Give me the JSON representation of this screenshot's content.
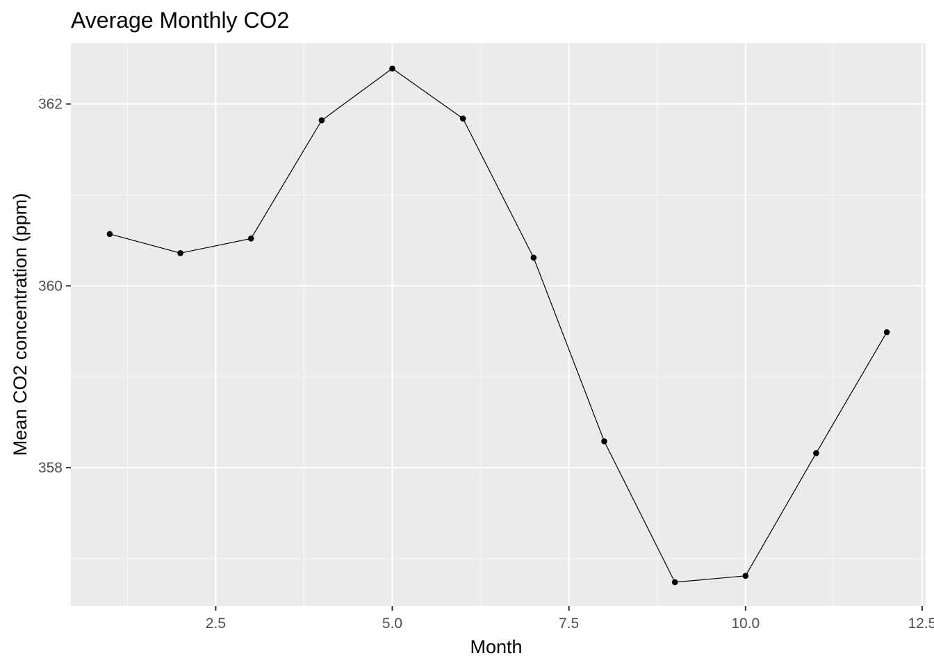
{
  "chart_data": {
    "type": "line",
    "title": "Average Monthly CO2",
    "xlabel": "Month",
    "ylabel": "Mean CO2 concentration (ppm)",
    "x": [
      1,
      2,
      3,
      4,
      5,
      6,
      7,
      8,
      9,
      10,
      11,
      12
    ],
    "series": [
      {
        "values": [
          360.57,
          360.36,
          360.52,
          361.82,
          362.39,
          361.84,
          360.31,
          358.29,
          356.74,
          356.81,
          358.16,
          359.49
        ]
      }
    ],
    "xlim": [
      0.45,
      12.55
    ],
    "ylim": [
      356.48,
      362.67
    ],
    "x_ticks": [
      2.5,
      5.0,
      7.5,
      10.0,
      12.5
    ],
    "x_tick_labels": [
      "2.5",
      "5.0",
      "7.5",
      "10.0",
      "12.5"
    ],
    "y_ticks": [
      358,
      360,
      362
    ],
    "y_tick_labels": [
      "358",
      "360",
      "362"
    ],
    "grid": true,
    "markers": true,
    "legend": "none",
    "colors": {
      "panel_background": "#ebebeb",
      "grid_major": "#ffffff",
      "grid_minor": "#f5f5f5",
      "line": "#000000",
      "point": "#000000",
      "tick_text": "#4d4d4d",
      "axis_title": "#000000"
    }
  }
}
